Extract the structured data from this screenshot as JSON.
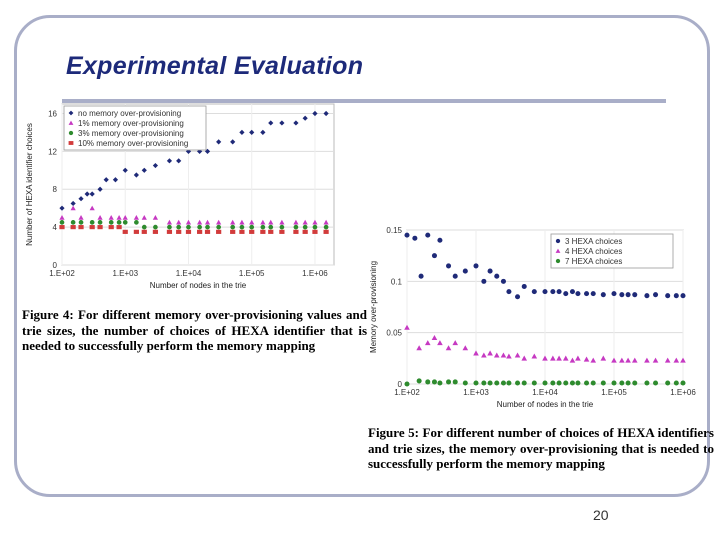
{
  "slide": {
    "title": "Experimental Evaluation",
    "page_number": "20",
    "caption_fig4": "Figure 4: For different memory over-provisioning values and trie sizes, the number of choices of HEXA identifier that is needed to successfully perform the memory mapping",
    "caption_fig5": "Figure 5: For different number of choices of HEXA identifiers and trie sizes, the memory over-provisioning that is needed to successfully perform the memory mapping"
  },
  "chart_data": [
    {
      "type": "scatter",
      "xlabel": "Number of nodes in the trie",
      "ylabel": "Number of HEXA identifier choices",
      "x_scale": "log",
      "xlim": [
        100,
        2000000
      ],
      "ylim": [
        0,
        17
      ],
      "grid": true,
      "legend": "top-left",
      "yticks": [
        "0",
        "4",
        "8",
        "12",
        "16"
      ],
      "ytick_values": [
        0,
        4,
        8,
        12,
        16
      ],
      "xticks": [
        "1.E+02",
        "1.E+03",
        "1.E+04",
        "1.E+05",
        "1.E+06"
      ],
      "xtick_values": [
        100,
        1000,
        10000,
        100000,
        1000000
      ],
      "series": [
        {
          "name": "no memory over-provisioning",
          "color": "#1f2a78",
          "marker": "diamond",
          "x": [
            100,
            150,
            200,
            250,
            300,
            400,
            500,
            700,
            1000,
            1500,
            2000,
            3000,
            5000,
            7000,
            10000,
            15000,
            20000,
            30000,
            50000,
            70000,
            100000,
            150000,
            200000,
            300000,
            500000,
            700000,
            1000000,
            1500000
          ],
          "y": [
            6,
            6.5,
            7,
            7.5,
            7.5,
            8,
            9,
            9,
            10,
            9.5,
            10,
            10.5,
            11,
            11,
            12,
            12,
            12,
            13,
            13,
            14,
            14,
            14,
            15,
            15,
            15,
            15.5,
            16,
            16
          ]
        },
        {
          "name": "1% memory over-provisioning",
          "color": "#c639c2",
          "marker": "triangle",
          "x": [
            100,
            150,
            200,
            300,
            400,
            600,
            800,
            1000,
            1500,
            2000,
            3000,
            5000,
            7000,
            10000,
            15000,
            20000,
            30000,
            50000,
            70000,
            100000,
            150000,
            200000,
            300000,
            500000,
            700000,
            1000000,
            1500000
          ],
          "y": [
            5,
            6,
            5,
            6,
            5,
            5,
            5,
            5,
            5,
            5,
            5,
            4.5,
            4.5,
            4.5,
            4.5,
            4.5,
            4.5,
            4.5,
            4.5,
            4.5,
            4.5,
            4.5,
            4.5,
            4.5,
            4.5,
            4.5,
            4.5
          ]
        },
        {
          "name": "3% memory over-provisioning",
          "color": "#2e8b2e",
          "marker": "circle",
          "x": [
            100,
            150,
            200,
            300,
            400,
            600,
            800,
            1000,
            1500,
            2000,
            3000,
            5000,
            7000,
            10000,
            15000,
            20000,
            30000,
            50000,
            70000,
            100000,
            150000,
            200000,
            300000,
            500000,
            700000,
            1000000,
            1500000
          ],
          "y": [
            4.5,
            4.5,
            4.5,
            4.5,
            4.5,
            4.5,
            4.5,
            4.5,
            4.5,
            4,
            4,
            4,
            4,
            4,
            4,
            4,
            4,
            4,
            4,
            4,
            4,
            4,
            4,
            4,
            4,
            4,
            4
          ]
        },
        {
          "name": "10% memory over-provisioning",
          "color": "#d23b3b",
          "marker": "square",
          "x": [
            100,
            150,
            200,
            300,
            400,
            600,
            800,
            1000,
            1500,
            2000,
            3000,
            5000,
            7000,
            10000,
            15000,
            20000,
            30000,
            50000,
            70000,
            100000,
            150000,
            200000,
            300000,
            500000,
            700000,
            1000000,
            1500000
          ],
          "y": [
            4,
            4,
            4,
            4,
            4,
            4,
            4,
            3.5,
            3.5,
            3.5,
            3.5,
            3.5,
            3.5,
            3.5,
            3.5,
            3.5,
            3.5,
            3.5,
            3.5,
            3.5,
            3.5,
            3.5,
            3.5,
            3.5,
            3.5,
            3.5,
            3.5
          ]
        }
      ]
    },
    {
      "type": "scatter",
      "xlabel": "Number of nodes in the trie",
      "ylabel": "Memory over-provisioning",
      "x_scale": "log",
      "xlim": [
        100,
        1000000
      ],
      "ylim": [
        0,
        0.15
      ],
      "grid": true,
      "legend": "top-right",
      "yticks": [
        "0",
        "0.05",
        "0.1",
        "0.15"
      ],
      "ytick_values": [
        0,
        0.05,
        0.1,
        0.15
      ],
      "xticks": [
        "1.E+02",
        "1.E+03",
        "1.E+04",
        "1.E+05",
        "1.E+06"
      ],
      "xtick_values": [
        100,
        1000,
        10000,
        100000,
        1000000
      ],
      "series": [
        {
          "name": "3 HEXA choices",
          "color": "#1f2a78",
          "marker": "circle",
          "x": [
            100,
            130,
            160,
            200,
            250,
            300,
            400,
            500,
            700,
            1000,
            1300,
            1600,
            2000,
            2500,
            3000,
            4000,
            5000,
            7000,
            10000,
            13000,
            16000,
            20000,
            25000,
            30000,
            40000,
            50000,
            70000,
            100000,
            130000,
            160000,
            200000,
            300000,
            400000,
            600000,
            800000,
            1000000
          ],
          "y": [
            0.145,
            0.142,
            0.105,
            0.145,
            0.125,
            0.14,
            0.115,
            0.105,
            0.11,
            0.115,
            0.1,
            0.11,
            0.105,
            0.1,
            0.09,
            0.085,
            0.095,
            0.09,
            0.09,
            0.09,
            0.09,
            0.088,
            0.09,
            0.088,
            0.088,
            0.088,
            0.087,
            0.088,
            0.087,
            0.087,
            0.087,
            0.086,
            0.087,
            0.086,
            0.086,
            0.086
          ]
        },
        {
          "name": "4 HEXA choices",
          "color": "#c639c2",
          "marker": "triangle",
          "x": [
            100,
            150,
            200,
            250,
            300,
            400,
            500,
            700,
            1000,
            1300,
            1600,
            2000,
            2500,
            3000,
            4000,
            5000,
            7000,
            10000,
            13000,
            16000,
            20000,
            25000,
            30000,
            40000,
            50000,
            70000,
            100000,
            130000,
            160000,
            200000,
            300000,
            400000,
            600000,
            800000,
            1000000
          ],
          "y": [
            0.055,
            0.035,
            0.04,
            0.045,
            0.04,
            0.035,
            0.04,
            0.035,
            0.03,
            0.028,
            0.03,
            0.028,
            0.028,
            0.027,
            0.028,
            0.025,
            0.027,
            0.025,
            0.025,
            0.025,
            0.025,
            0.023,
            0.025,
            0.024,
            0.023,
            0.025,
            0.023,
            0.023,
            0.023,
            0.023,
            0.023,
            0.023,
            0.023,
            0.023,
            0.023
          ]
        },
        {
          "name": "7 HEXA choices",
          "color": "#2e8b2e",
          "marker": "circle",
          "x": [
            100,
            150,
            200,
            250,
            300,
            400,
            500,
            700,
            1000,
            1300,
            1600,
            2000,
            2500,
            3000,
            4000,
            5000,
            7000,
            10000,
            13000,
            16000,
            20000,
            25000,
            30000,
            40000,
            50000,
            70000,
            100000,
            130000,
            160000,
            200000,
            300000,
            400000,
            600000,
            800000,
            1000000
          ],
          "y": [
            0,
            0.003,
            0.002,
            0.002,
            0.001,
            0.002,
            0.002,
            0.001,
            0.001,
            0.001,
            0.001,
            0.001,
            0.001,
            0.001,
            0.001,
            0.001,
            0.001,
            0.001,
            0.001,
            0.001,
            0.001,
            0.001,
            0.001,
            0.001,
            0.001,
            0.001,
            0.001,
            0.001,
            0.001,
            0.001,
            0.001,
            0.001,
            0.001,
            0.001,
            0.001
          ]
        }
      ]
    }
  ]
}
